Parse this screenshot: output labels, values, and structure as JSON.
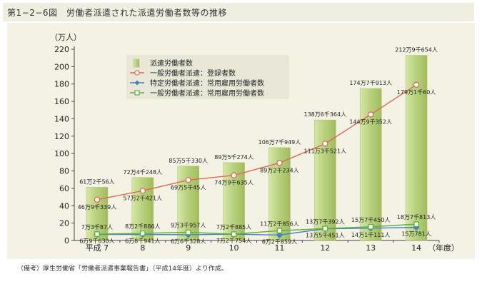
{
  "header": {
    "title": "第1−2−6図　労働者派遣された派遣労働者数等の推移"
  },
  "note": "（備考）厚生労働省「労働者派遣事業報告書」（平成14年度）より作成。",
  "colors": {
    "bar": "#b9d27e",
    "general_registered": "#e06a4e",
    "specific_regular": "#4a7fc6",
    "general_regular": "#5fb03a"
  },
  "chart_data": {
    "type": "bar",
    "ylabel": "（万人）",
    "xlabel": "（年度）",
    "ylim": [
      0,
      220
    ],
    "yticks": [
      0,
      20,
      40,
      60,
      80,
      100,
      120,
      140,
      160,
      180,
      200,
      220
    ],
    "grid": false,
    "legend_position": "top-left",
    "categories": [
      "平成 7",
      "8",
      "9",
      "10",
      "11",
      "12",
      "13",
      "14"
    ],
    "series": [
      {
        "name": "派遣労働者数",
        "type": "bar",
        "values": [
          61.2056,
          72.4248,
          85.533,
          89.5274,
          106.7949,
          138.6364,
          174.7913,
          212.9654
        ],
        "labels": [
          "61万2千56人",
          "72万4千248人",
          "85万5千330人",
          "89万5千274人",
          "106万7千949人",
          "138万6千364人",
          "174万7千913人",
          "212万9千654人"
        ]
      },
      {
        "name": "一般労働者派遣：登録者数",
        "type": "line",
        "marker": "circle",
        "values": [
          46.9339,
          57.2421,
          69.5045,
          74.9635,
          89.2234,
          111.3521,
          144.9352,
          179.106
        ],
        "labels": [
          "46万9千339人",
          "57万2千421人",
          "69万5千45人",
          "74万9千635人",
          "89万2千234人",
          "111万3千521人",
          "144万9千352人",
          "179万1千60人"
        ]
      },
      {
        "name": "特定労働者派遣：常用雇用労働者数",
        "type": "line",
        "marker": "diamond",
        "values": [
          6.963,
          6.8941,
          6.6328,
          7.2754,
          6.2859,
          13.5451,
          14.1111,
          15.0781
        ],
        "labels": [
          "6万9千630人",
          "6万8千941人",
          "6万6千328人",
          "7万2千754人",
          "6万2千859人",
          "13万5千451人",
          "14万1千111人",
          "15万781人"
        ]
      },
      {
        "name": "一般労働者派遣：常用雇用労働者数",
        "type": "line",
        "marker": "square",
        "values": [
          7.3087,
          8.2886,
          9.3957,
          7.2885,
          11.2856,
          13.7392,
          15.745,
          18.7813
        ],
        "labels": [
          "7万3千87人",
          "8万2千886人",
          "9万3千957人",
          "7万2千885人",
          "11万2千856人",
          "13万7千392人",
          "15万7千450人",
          "18万7千813人"
        ]
      }
    ]
  }
}
